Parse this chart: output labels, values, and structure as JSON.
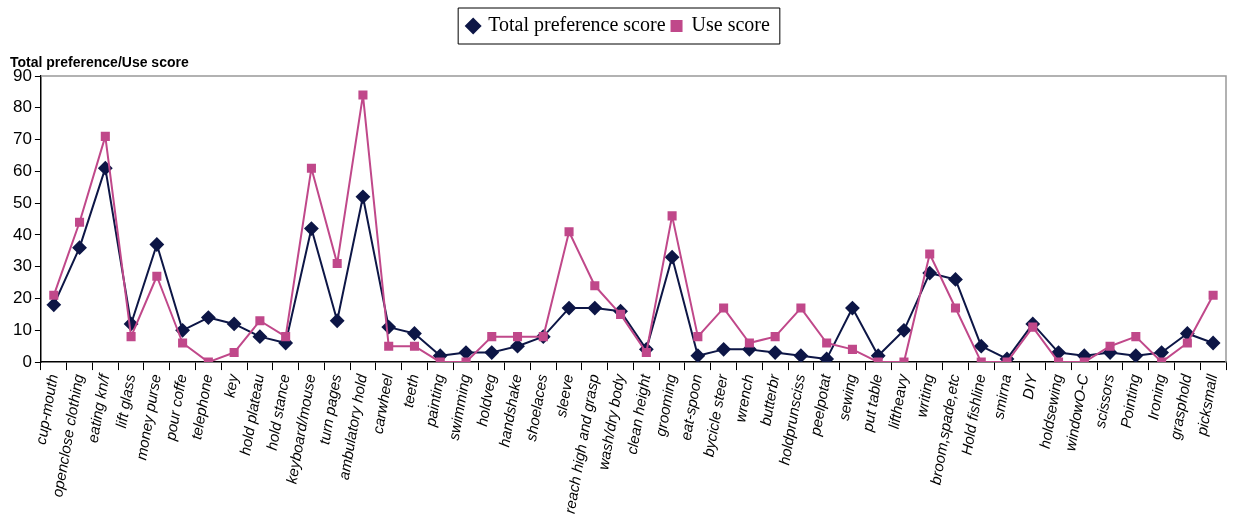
{
  "chart_data": {
    "type": "line",
    "ylabel": "Total preference/Use score",
    "categories": [
      "cup-mouth",
      "openclose clothing",
      "eating kn/f",
      "lift glass",
      "money purse",
      "pour coffe",
      "telephone",
      "key",
      "hold plateau",
      "hold stance",
      "keyboard/mouse",
      "turn pages",
      "ambulatory hold",
      "carwheel",
      "teeth",
      "painting",
      "swimming",
      "holdveg",
      "handshake",
      "shoelaces",
      "sleeve",
      "reach high and grasp",
      "wash/dry body",
      "clean height",
      "grooming",
      "eat-spoon",
      "bycicle steer",
      "wrench",
      "butterbr",
      "holdprunsciss",
      "peelpotat",
      "sewing",
      "put table",
      "liftheavy",
      "writing",
      "broom,spade,etc",
      "Hold fishline",
      "smirna",
      "DIY",
      "holdsewing",
      "windowO-C",
      "scissors",
      "Pointing",
      "Ironing",
      "grasphold",
      "picksmall"
    ],
    "series": [
      {
        "name": "Total preference score",
        "color": "#0d1646",
        "marker": "diamond",
        "values": [
          18,
          36,
          61,
          12,
          37,
          10,
          14,
          12,
          8,
          6,
          42,
          13,
          52,
          11,
          9,
          2,
          3,
          3,
          5,
          8,
          17,
          17,
          16,
          4,
          33,
          2,
          4,
          4,
          3,
          2,
          1,
          17,
          2,
          10,
          28,
          26,
          5,
          1,
          12,
          3,
          2,
          3,
          2,
          3,
          9,
          6
        ]
      },
      {
        "name": "Use score",
        "color": "#c0488a",
        "marker": "square",
        "values": [
          21,
          44,
          71,
          8,
          27,
          6,
          0,
          3,
          13,
          8,
          61,
          31,
          84,
          5,
          5,
          0,
          0,
          8,
          8,
          8,
          41,
          24,
          15,
          3,
          46,
          8,
          17,
          6,
          8,
          17,
          6,
          4,
          0,
          0,
          34,
          17,
          0,
          0,
          11,
          0,
          0,
          5,
          8,
          0,
          6,
          21
        ]
      }
    ],
    "ylim": [
      0,
      90
    ],
    "yticks": [
      0,
      10,
      20,
      30,
      40,
      50,
      60,
      70,
      80,
      90
    ],
    "grid": false,
    "legend": "top",
    "line_style": "solid"
  }
}
